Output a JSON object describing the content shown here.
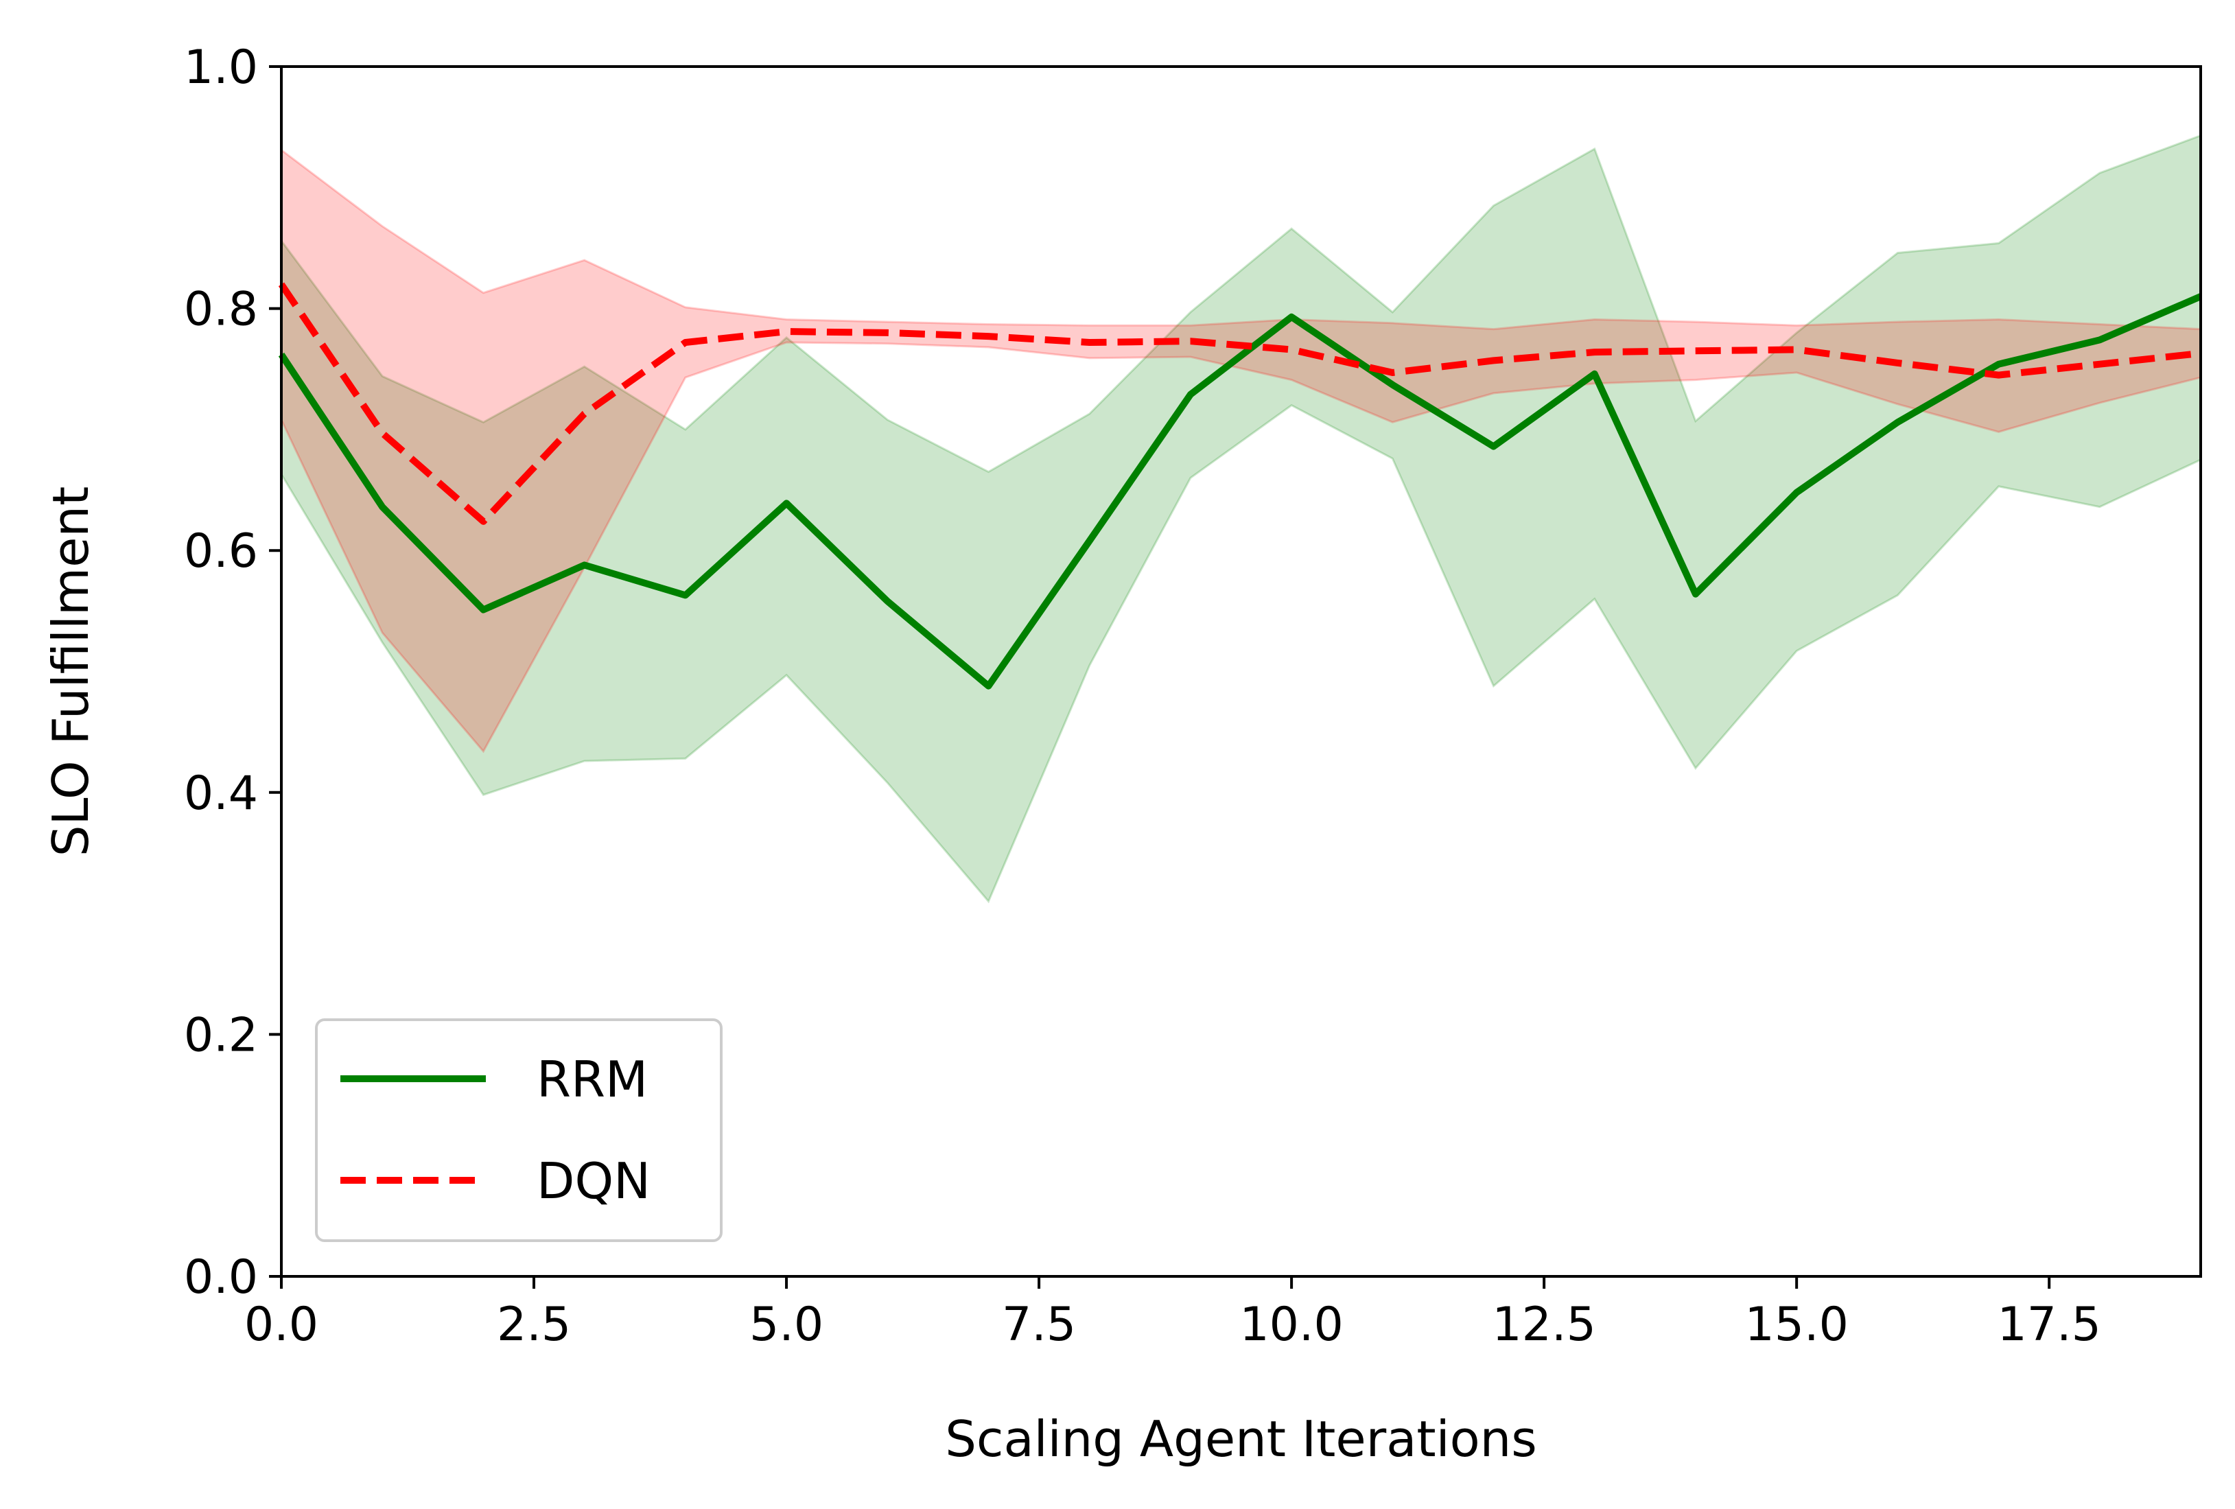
{
  "chart_data": {
    "type": "line",
    "title": "",
    "xlabel": "Scaling Agent Iterations",
    "ylabel": "SLO Fulfillment",
    "xlim": [
      0,
      19
    ],
    "ylim": [
      0.0,
      1.0
    ],
    "x_ticks": [
      "0.0",
      "2.5",
      "5.0",
      "7.5",
      "10.0",
      "12.5",
      "15.0",
      "17.5"
    ],
    "x_tick_values": [
      0,
      2.5,
      5,
      7.5,
      10,
      12.5,
      15,
      17.5
    ],
    "y_ticks": [
      "0.0",
      "0.2",
      "0.4",
      "0.6",
      "0.8",
      "1.0"
    ],
    "y_tick_values": [
      0,
      0.2,
      0.4,
      0.6,
      0.8,
      1.0
    ],
    "grid": false,
    "legend_position": "lower-left",
    "x": [
      0,
      1,
      2,
      3,
      4,
      5,
      6,
      7,
      8,
      9,
      10,
      11,
      12,
      13,
      14,
      15,
      16,
      17,
      18,
      19
    ],
    "series": [
      {
        "name": "RRM",
        "color": "#008000",
        "fill_color": "#008000",
        "line_style": "solid",
        "values": [
          0.762,
          0.636,
          0.551,
          0.588,
          0.563,
          0.639,
          0.558,
          0.488,
          0.608,
          0.729,
          0.793,
          0.737,
          0.686,
          0.746,
          0.564,
          0.648,
          0.706,
          0.754,
          0.774,
          0.81
        ],
        "upper": [
          0.856,
          0.744,
          0.706,
          0.752,
          0.7,
          0.776,
          0.708,
          0.665,
          0.713,
          0.797,
          0.866,
          0.797,
          0.885,
          0.932,
          0.707,
          0.78,
          0.846,
          0.854,
          0.912,
          0.943
        ],
        "lower": [
          0.663,
          0.524,
          0.398,
          0.426,
          0.428,
          0.497,
          0.408,
          0.31,
          0.505,
          0.66,
          0.72,
          0.676,
          0.488,
          0.56,
          0.42,
          0.517,
          0.563,
          0.653,
          0.636,
          0.675
        ]
      },
      {
        "name": "DQN",
        "color": "#ff0000",
        "fill_color": "#ff0000",
        "line_style": "dashed",
        "values": [
          0.82,
          0.697,
          0.624,
          0.713,
          0.772,
          0.781,
          0.78,
          0.777,
          0.772,
          0.773,
          0.766,
          0.747,
          0.757,
          0.764,
          0.765,
          0.766,
          0.755,
          0.745,
          0.754,
          0.763
        ],
        "upper": [
          0.931,
          0.868,
          0.813,
          0.84,
          0.801,
          0.791,
          0.789,
          0.787,
          0.786,
          0.786,
          0.791,
          0.788,
          0.783,
          0.791,
          0.789,
          0.786,
          0.789,
          0.791,
          0.787,
          0.783
        ],
        "lower": [
          0.708,
          0.532,
          0.434,
          0.586,
          0.743,
          0.772,
          0.771,
          0.768,
          0.759,
          0.76,
          0.741,
          0.706,
          0.73,
          0.738,
          0.741,
          0.747,
          0.721,
          0.698,
          0.722,
          0.743
        ]
      }
    ]
  }
}
